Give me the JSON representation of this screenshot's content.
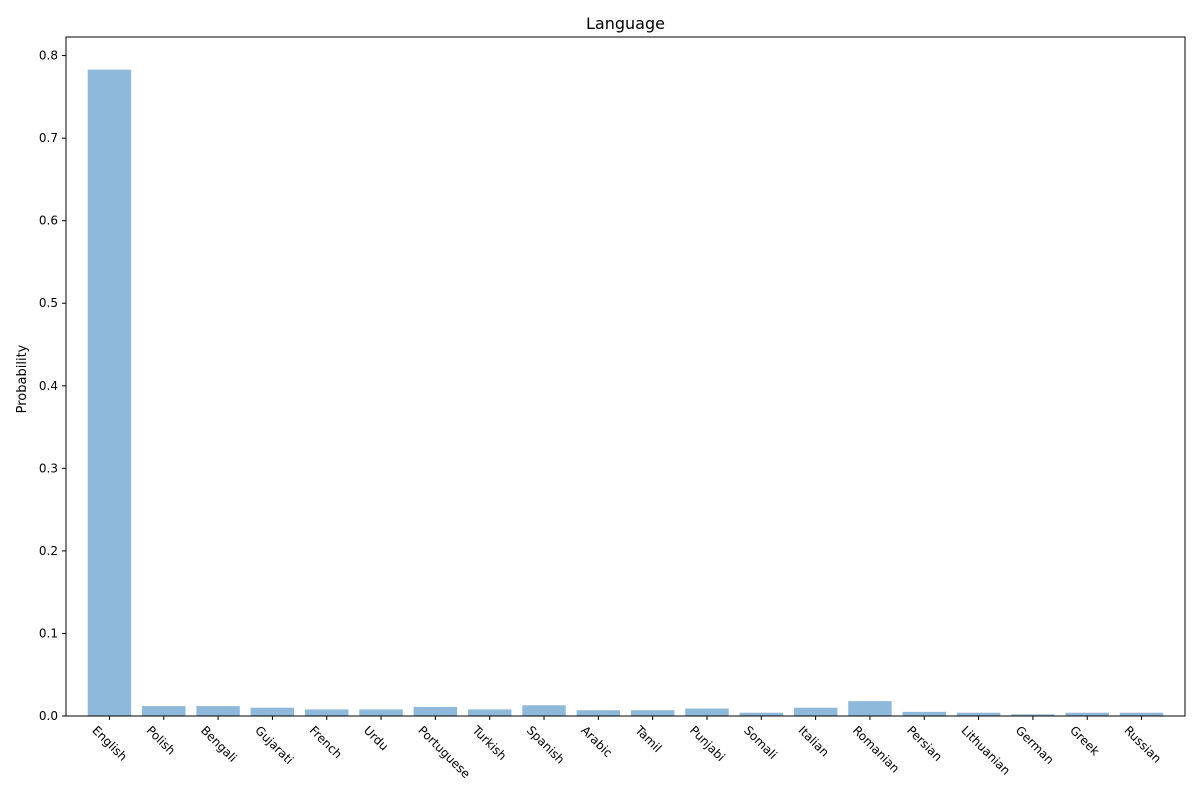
{
  "chart_data": {
    "type": "bar",
    "title": "Language",
    "xlabel": "",
    "ylabel": "Probability",
    "categories": [
      "English",
      "Polish",
      "Bengali",
      "Gujarati",
      "French",
      "Urdu",
      "Portuguese",
      "Turkish",
      "Spanish",
      "Arabic",
      "Tamil",
      "Punjabi",
      "Somali",
      "Italian",
      "Romanian",
      "Persian",
      "Lithuanian",
      "German",
      "Greek",
      "Russian"
    ],
    "values": [
      0.783,
      0.012,
      0.012,
      0.01,
      0.008,
      0.008,
      0.011,
      0.008,
      0.013,
      0.007,
      0.007,
      0.009,
      0.004,
      0.01,
      0.018,
      0.005,
      0.004,
      0.002,
      0.004,
      0.004
    ],
    "ylim": [
      0,
      0.8225
    ],
    "yticks": [
      0.0,
      0.1,
      0.2,
      0.3,
      0.4,
      0.5,
      0.6,
      0.7,
      0.8
    ],
    "ytick_labels": [
      "0.0",
      "0.1",
      "0.2",
      "0.3",
      "0.4",
      "0.5",
      "0.6",
      "0.7",
      "0.8"
    ],
    "bar_color": "#8fb9da",
    "grid": false
  }
}
